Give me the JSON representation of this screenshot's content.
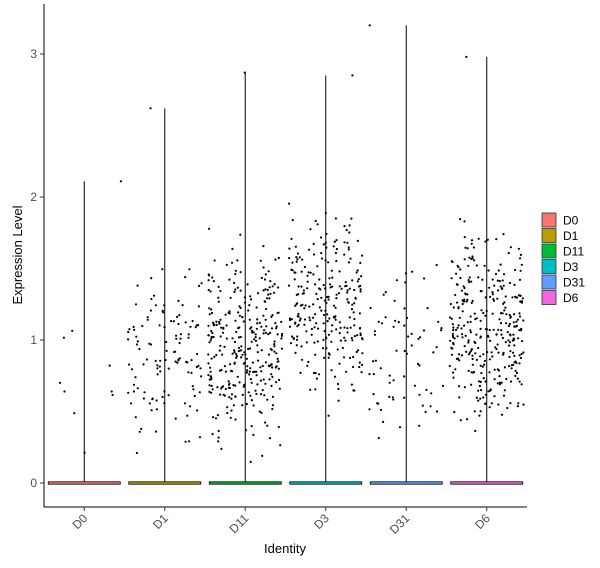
{
  "chart_data": {
    "type": "violin-jitter",
    "xlabel": "Identity",
    "ylabel": "Expression Level",
    "categories": [
      "D0",
      "D1",
      "D11",
      "D3",
      "D31",
      "D6"
    ],
    "y_ticks": [
      "0",
      "1",
      "2",
      "3"
    ],
    "ylim": [
      -0.18,
      3.35
    ],
    "legend_position": "right",
    "series": [
      {
        "name": "D0",
        "color": "#F8766D",
        "max": 2.11,
        "n_nonzero": 10,
        "median_nonzero": 0.6
      },
      {
        "name": "D1",
        "color": "#B79F00",
        "max": 2.62,
        "n_nonzero": 120,
        "median_nonzero": 0.9
      },
      {
        "name": "D11",
        "color": "#00BA38",
        "max": 2.87,
        "n_nonzero": 320,
        "median_nonzero": 0.95
      },
      {
        "name": "D3",
        "color": "#00BFC4",
        "max": 2.85,
        "n_nonzero": 260,
        "median_nonzero": 1.2
      },
      {
        "name": "D31",
        "color": "#619CFF",
        "max": 3.2,
        "n_nonzero": 70,
        "median_nonzero": 0.9
      },
      {
        "name": "D6",
        "color": "#F564E3",
        "max": 2.98,
        "n_nonzero": 330,
        "median_nonzero": 1.1
      }
    ],
    "violin_line_color": "#000000",
    "point_color": "#000000",
    "grid": false
  }
}
